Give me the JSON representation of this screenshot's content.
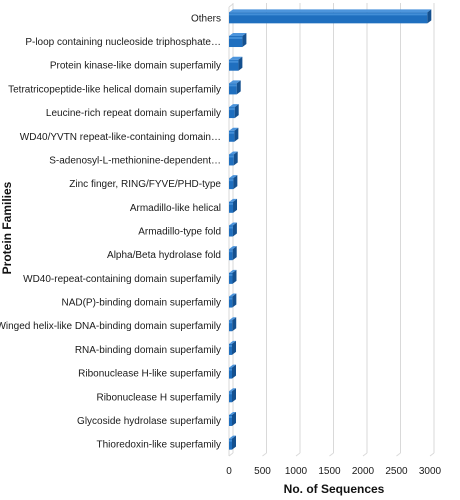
{
  "chart_data": {
    "type": "bar",
    "orientation": "horizontal",
    "style": "3d",
    "xlabel": "No. of Sequences",
    "ylabel": "Protein Families",
    "xlim": [
      0,
      3000
    ],
    "xticks": [
      "0",
      "500",
      "1000",
      "1500",
      "2000",
      "2500",
      "3000"
    ],
    "grid": true,
    "bar_color": "#1f6fbf",
    "categories": [
      "Others",
      "P-loop containing nucleoside triphosphate…",
      "Protein kinase-like domain superfamily",
      "Tetratricopeptide-like helical domain superfamily",
      "Leucine-rich repeat domain superfamily",
      "WD40/YVTN repeat-like-containing domain…",
      "S-adenosyl-L-methionine-dependent…",
      "Zinc finger, RING/FYVE/PHD-type",
      "Armadillo-like helical",
      "Armadillo-type fold",
      "Alpha/Beta hydrolase fold",
      "WD40-repeat-containing domain superfamily",
      "NAD(P)-binding domain superfamily",
      "Winged helix-like DNA-binding domain superfamily",
      "RNA-binding domain superfamily",
      "Ribonuclease H-like superfamily",
      "Ribonuclease H superfamily",
      "Glycoside hydrolase superfamily",
      "Thioredoxin-like superfamily"
    ],
    "values": [
      2960,
      200,
      140,
      115,
      85,
      80,
      70,
      65,
      60,
      58,
      55,
      52,
      50,
      48,
      45,
      42,
      40,
      38,
      35
    ]
  }
}
